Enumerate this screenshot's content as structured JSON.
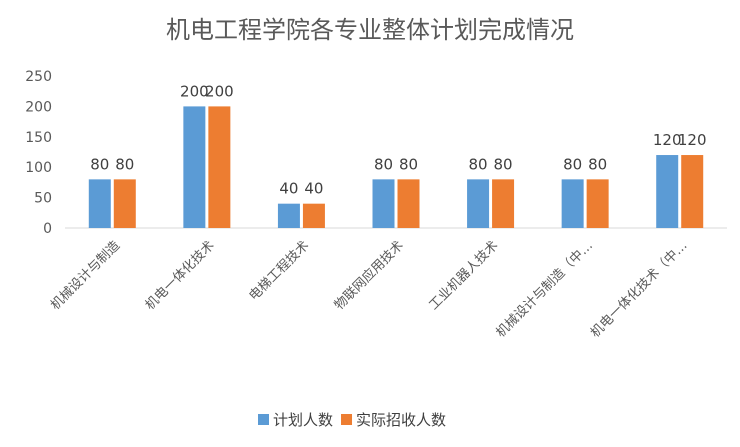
{
  "chart_data": {
    "type": "bar",
    "title": "机电工程学院各专业整体计划完成情况",
    "categories": [
      "机械设计与制造",
      "机电一体化技术",
      "电梯工程技术",
      "物联网应用技术",
      "工业机器人技术",
      "机械设计与制造（中…",
      "机电一体化技术（中…"
    ],
    "series": [
      {
        "name": "计划人数",
        "color": "#5B9BD5",
        "values": [
          80,
          200,
          40,
          80,
          80,
          80,
          120
        ]
      },
      {
        "name": "实际招收人数",
        "color": "#ED7D31",
        "values": [
          80,
          200,
          40,
          80,
          80,
          80,
          120
        ]
      }
    ],
    "ylim": [
      0,
      250
    ],
    "yticks": [
      0,
      50,
      100,
      150,
      200,
      250
    ],
    "xlabel": "",
    "ylabel": "",
    "grid": false,
    "legend": "bottom"
  }
}
